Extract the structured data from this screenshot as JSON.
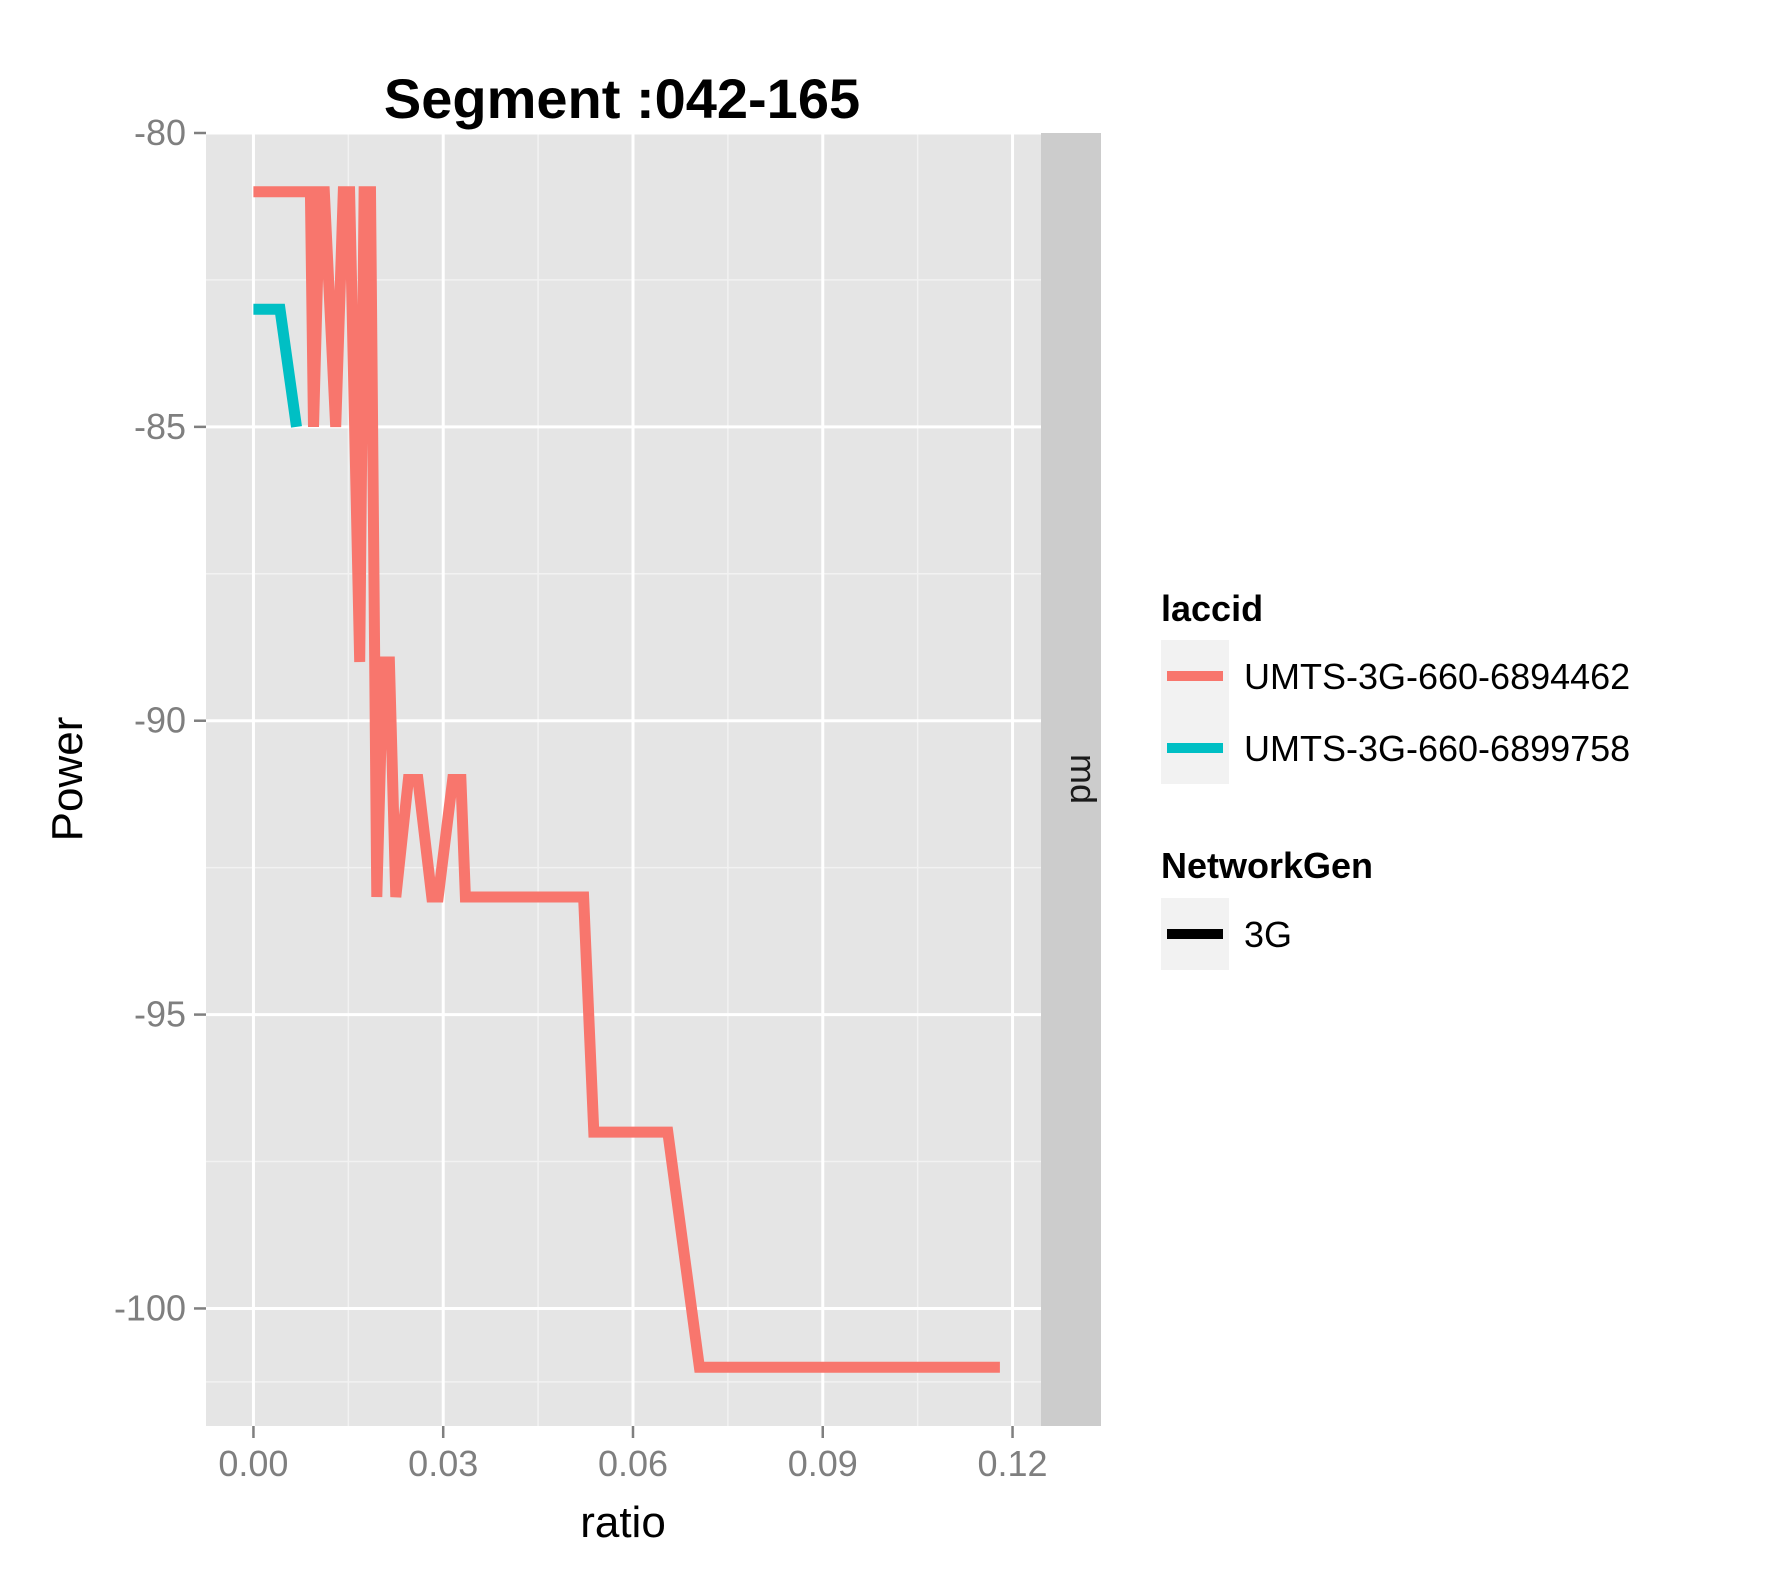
{
  "chart_data": {
    "type": "line",
    "title": "Segment :042-165",
    "xlabel": "ratio",
    "ylabel": "Power",
    "xlim": [
      -0.0075,
      0.1245
    ],
    "ylim": [
      -102,
      -80
    ],
    "x_ticks": [
      "0.00",
      "0.03",
      "0.06",
      "0.09",
      "0.12"
    ],
    "x_tick_values": [
      0.0,
      0.03,
      0.06,
      0.09,
      0.12
    ],
    "y_ticks": [
      "-80",
      "-85",
      "-90",
      "-95",
      "-100"
    ],
    "y_tick_values": [
      -80,
      -85,
      -90,
      -95,
      -100
    ],
    "grid": true,
    "facet_strip": "md",
    "legend_position": "right",
    "legend": {
      "laccid": {
        "title": "laccid",
        "entries": [
          {
            "label": "UMTS-3G-660-6894462",
            "color": "#F8766D"
          },
          {
            "label": "UMTS-3G-660-6899758",
            "color": "#00BFC4"
          }
        ]
      },
      "networkgen": {
        "title": "NetworkGen",
        "entries": [
          {
            "label": "3G",
            "color": "#000000"
          }
        ]
      }
    },
    "series": [
      {
        "name": "UMTS-3G-660-6894462",
        "color": "#F8766D",
        "x": [
          0.0,
          0.009,
          0.0095,
          0.0105,
          0.0112,
          0.013,
          0.0142,
          0.0152,
          0.0168,
          0.0175,
          0.0185,
          0.0195,
          0.0205,
          0.0215,
          0.0225,
          0.0245,
          0.0255,
          0.026,
          0.0282,
          0.0292,
          0.0315,
          0.0328,
          0.0335,
          0.0522,
          0.0538,
          0.0655,
          0.0705,
          0.118
        ],
        "y": [
          -81,
          -81,
          -85,
          -81,
          -81,
          -85,
          -81,
          -81,
          -89,
          -81,
          -81,
          -93,
          -89,
          -89,
          -93,
          -91,
          -91,
          -91,
          -93,
          -93,
          -91,
          -91,
          -93,
          -93,
          -97,
          -97,
          -101,
          -101
        ]
      },
      {
        "name": "UMTS-3G-660-6899758",
        "color": "#00BFC4",
        "x": [
          0.0,
          0.0042,
          0.0068
        ],
        "y": [
          -83,
          -83,
          -85
        ]
      }
    ]
  }
}
